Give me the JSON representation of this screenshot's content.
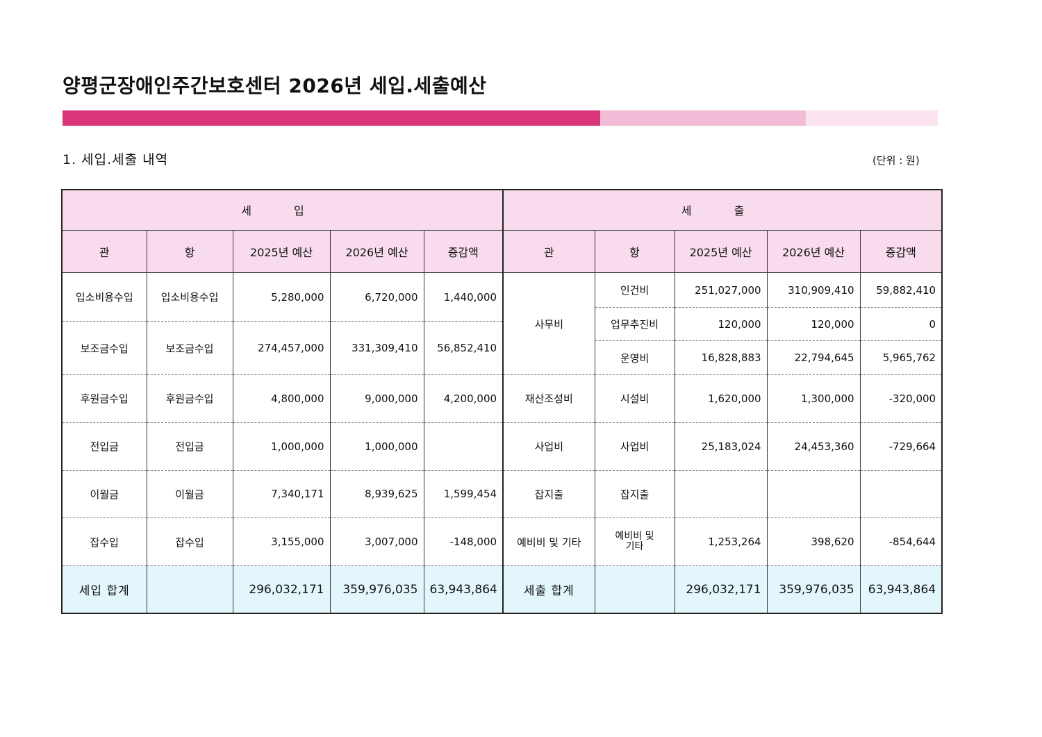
{
  "title": "양평군장애인주간보호센터 2026년 세입.세출예산",
  "section_title": "1. 세입.세출 내역",
  "unit": "(단위 : 원)",
  "headers": {
    "income": "세 입",
    "expense": "세 출",
    "income_cols": [
      "관",
      "항",
      "2025년 예산",
      "2026년 예산",
      "증감액"
    ],
    "expense_cols": [
      "관",
      "항",
      "2025년 예산",
      "2026년 예산",
      "증감액"
    ]
  },
  "income_rows": [
    {
      "gwan": "입소비용수입",
      "hang": "입소비용수입",
      "y2025": "5,280,000",
      "y2026": "6,720,000",
      "diff": "1,440,000"
    },
    {
      "gwan": "보조금수입",
      "hang": "보조금수입",
      "y2025": "274,457,000",
      "y2026": "331,309,410",
      "diff": "56,852,410"
    },
    {
      "gwan": "후원금수입",
      "hang": "후원금수입",
      "y2025": "4,800,000",
      "y2026": "9,000,000",
      "diff": "4,200,000"
    },
    {
      "gwan": "전입금",
      "hang": "전입금",
      "y2025": "1,000,000",
      "y2026": "1,000,000",
      "diff": ""
    },
    {
      "gwan": "이월금",
      "hang": "이월금",
      "y2025": "7,340,171",
      "y2026": "8,939,625",
      "diff": "1,599,454"
    },
    {
      "gwan": "잡수입",
      "hang": "잡수입",
      "y2025": "3,155,000",
      "y2026": "3,007,000",
      "diff": "-148,000"
    }
  ],
  "expense_rows": [
    {
      "gwan": "사무비",
      "hang": "인건비",
      "y2025": "251,027,000",
      "y2026": "310,909,410",
      "diff": "59,882,410"
    },
    {
      "gwan": "",
      "hang": "업무추진비",
      "y2025": "120,000",
      "y2026": "120,000",
      "diff": "0"
    },
    {
      "gwan": "",
      "hang": "운영비",
      "y2025": "16,828,883",
      "y2026": "22,794,645",
      "diff": "5,965,762"
    },
    {
      "gwan": "재산조성비",
      "hang": "시설비",
      "y2025": "1,620,000",
      "y2026": "1,300,000",
      "diff": "-320,000"
    },
    {
      "gwan": "사업비",
      "hang": "사업비",
      "y2025": "25,183,024",
      "y2026": "24,453,360",
      "diff": "-729,664"
    },
    {
      "gwan": "잡지출",
      "hang": "잡지출",
      "y2025": "",
      "y2026": "",
      "diff": ""
    },
    {
      "gwan": "예비비 및 기타",
      "hang_line1": "예비비 및",
      "hang_line2": "기타",
      "y2025": "1,253,264",
      "y2026": "398,620",
      "diff": "-854,644"
    }
  ],
  "totals": {
    "income_label": "세입 합계",
    "income_2025": "296,032,171",
    "income_2026": "359,976,035",
    "income_diff": "63,943,864",
    "expense_label": "세출 합계",
    "expense_2025": "296,032,171",
    "expense_2026": "359,976,035",
    "expense_diff": "63,943,864"
  },
  "colors": {
    "accent_bar": "#d9357a",
    "accent_bar_light": "#f2bcd6",
    "accent_bar_lighter": "#fbe3ef",
    "header_bg": "#f8dcee",
    "total_bg": "#e3f6fb"
  }
}
